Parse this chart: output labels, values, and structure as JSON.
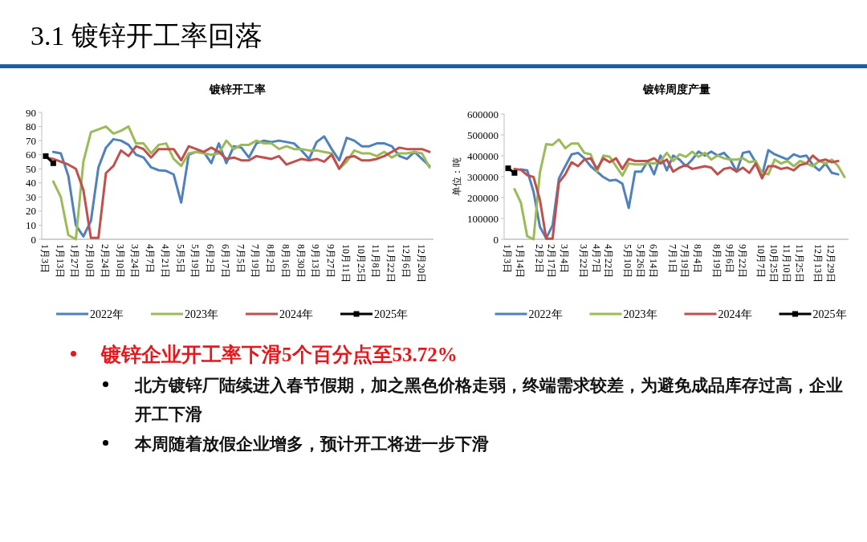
{
  "chart_data": [
    {
      "type": "line",
      "title": "镀锌开工率",
      "categories": [
        "1月3日",
        null,
        "1月13日",
        null,
        "1月27日",
        null,
        "2月10日",
        null,
        "2月24日",
        null,
        "3月10日",
        null,
        "3月24日",
        null,
        "4月7日",
        null,
        "4月21日",
        null,
        "5月5日",
        null,
        "5月19日",
        null,
        "6月2日",
        null,
        "6月17日",
        null,
        "7月5日",
        null,
        "7月19日",
        null,
        "8月2日",
        null,
        "8月16日",
        null,
        "8月30日",
        null,
        "9月13日",
        null,
        "9月27日",
        null,
        "10月11日",
        null,
        "10月25日",
        null,
        "11月8日",
        null,
        "11月22日",
        null,
        "12月6日",
        null,
        "12月20日",
        null
      ],
      "ylim": [
        0,
        90
      ],
      "yticks": [
        0,
        10,
        20,
        30,
        40,
        50,
        60,
        70,
        80,
        90
      ],
      "grid": false,
      "legend": "bottom",
      "marker": "none",
      "series": [
        {
          "name": "2022年",
          "color": "#4f81bd",
          "values": [
            null,
            62,
            61,
            45,
            10,
            2,
            13,
            51,
            65,
            71,
            70,
            67,
            60,
            58,
            51,
            49,
            48.5,
            46,
            26,
            60,
            62,
            62,
            54,
            68,
            54,
            66,
            65,
            58,
            68,
            70,
            69,
            70,
            69,
            68,
            63,
            57,
            69,
            73,
            64,
            56,
            72,
            70,
            66,
            66,
            68,
            68,
            66,
            59,
            57,
            62,
            57,
            52
          ]
        },
        {
          "name": "2023年",
          "color": "#9bbb59",
          "values": [
            null,
            41,
            30,
            3,
            0,
            55,
            76,
            78,
            80,
            75,
            77,
            80,
            68,
            68,
            61,
            67,
            68,
            57,
            52,
            61,
            62,
            61,
            60,
            61,
            70,
            64,
            67,
            67,
            70,
            68,
            68,
            64,
            66,
            64,
            64,
            63,
            63,
            62,
            61,
            50,
            55,
            63,
            61,
            61,
            59,
            62,
            58,
            61,
            61,
            62,
            61,
            51
          ]
        },
        {
          "name": "2024年",
          "color": "#c0504d",
          "values": [
            58,
            57,
            55,
            53,
            50,
            35,
            1,
            1,
            47,
            52,
            63,
            59,
            66,
            64,
            58,
            64,
            64,
            64,
            56,
            66,
            64,
            62,
            65,
            62,
            57,
            58,
            56,
            56,
            59,
            58,
            57,
            59,
            53,
            55,
            57,
            56,
            57,
            55,
            60,
            50,
            58,
            59,
            56,
            56,
            57,
            59,
            62,
            65,
            64,
            64,
            64,
            62
          ]
        },
        {
          "name": "2025年",
          "color": "#000000",
          "marker": "square",
          "values": [
            59,
            54,
            null,
            null,
            null,
            null,
            null,
            null,
            null,
            null,
            null,
            null,
            null,
            null,
            null,
            null,
            null,
            null,
            null,
            null,
            null,
            null,
            null,
            null,
            null,
            null,
            null,
            null,
            null,
            null,
            null,
            null,
            null,
            null,
            null,
            null,
            null,
            null,
            null,
            null,
            null,
            null,
            null,
            null,
            null,
            null,
            null,
            null,
            null,
            null,
            null,
            null
          ]
        }
      ]
    },
    {
      "type": "line",
      "title": "镀锌周度产量",
      "ylabel": "单位：吨",
      "categories": [
        "1月3日",
        null,
        "1月14日",
        null,
        null,
        "2月2日",
        null,
        "2月17日",
        null,
        "3月4日",
        null,
        null,
        "3月22日",
        null,
        "4月7日",
        null,
        "4月22日",
        null,
        null,
        "5月10日",
        null,
        "5月26日",
        null,
        "6月14日",
        null,
        null,
        "7月1日",
        null,
        "7月19日",
        null,
        "8月4日",
        null,
        null,
        "8月19日",
        null,
        "9月6日",
        null,
        "9月22日",
        null,
        null,
        "10月7日",
        null,
        "10月25日",
        null,
        "11月10日",
        null,
        "11月25日",
        null,
        null,
        "12月13日",
        null,
        "12月29日",
        null,
        null
      ],
      "ylim": [
        0,
        600000
      ],
      "yticks": [
        0,
        100000,
        200000,
        300000,
        400000,
        500000,
        600000
      ],
      "grid": false,
      "legend": "bottom",
      "marker": "none",
      "series": [
        {
          "name": "2022年",
          "color": "#4f81bd",
          "values": [
            null,
            null,
            335000,
            330000,
            228000,
            60000,
            5000,
            67000,
            292000,
            350000,
            407000,
            414000,
            388000,
            350000,
            324000,
            298000,
            281000,
            285000,
            266000,
            150000,
            324000,
            324000,
            375000,
            311000,
            401000,
            330000,
            401000,
            382000,
            350000,
            382000,
            420000,
            401000,
            420000,
            401000,
            414000,
            382000,
            324000,
            414000,
            420000,
            369000,
            305000,
            427000,
            407000,
            395000,
            382000,
            407000,
            395000,
            401000,
            356000,
            330000,
            363000,
            318000,
            311000,
            null
          ]
        },
        {
          "name": "2023年",
          "color": "#9bbb59",
          "values": [
            null,
            240000,
            176000,
            15000,
            0,
            320000,
            456000,
            452000,
            478000,
            436000,
            459000,
            459000,
            414000,
            407000,
            324000,
            401000,
            395000,
            350000,
            305000,
            363000,
            359000,
            359000,
            363000,
            363000,
            375000,
            414000,
            375000,
            407000,
            395000,
            420000,
            395000,
            414000,
            382000,
            401000,
            388000,
            382000,
            382000,
            388000,
            369000,
            375000,
            318000,
            311000,
            382000,
            363000,
            375000,
            350000,
            375000,
            363000,
            350000,
            375000,
            363000,
            382000,
            350000,
            298000
          ]
        },
        {
          "name": "2024年",
          "color": "#c0504d",
          "values": [
            null,
            337000,
            333000,
            307000,
            298000,
            189000,
            3000,
            3000,
            272000,
            311000,
            369000,
            350000,
            382000,
            388000,
            337000,
            388000,
            369000,
            388000,
            337000,
            385000,
            375000,
            375000,
            375000,
            388000,
            363000,
            382000,
            324000,
            343000,
            356000,
            337000,
            343000,
            350000,
            343000,
            311000,
            337000,
            343000,
            324000,
            343000,
            318000,
            363000,
            292000,
            350000,
            350000,
            337000,
            343000,
            330000,
            356000,
            363000,
            401000,
            375000,
            382000,
            369000,
            375000,
            null
          ]
        },
        {
          "name": "2025年",
          "color": "#000000",
          "marker": "square",
          "values": [
            340000,
            318000,
            null,
            null,
            null,
            null,
            null,
            null,
            null,
            null,
            null,
            null,
            null,
            null,
            null,
            null,
            null,
            null,
            null,
            null,
            null,
            null,
            null,
            null,
            null,
            null,
            null,
            null,
            null,
            null,
            null,
            null,
            null,
            null,
            null,
            null,
            null,
            null,
            null,
            null,
            null,
            null,
            null,
            null,
            null,
            null,
            null,
            null,
            null,
            null,
            null,
            null,
            null,
            null
          ]
        }
      ]
    },
    {
      "type": "other",
      "title": "3.1 镀锌开工率回落",
      "annotations": [
        "镀锌企业开工率下滑5个百分点至53.72%",
        "北方镀锌厂陆续进入春节假期，加之黑色价格走弱，终端需求较差，为避免成品库存过高，企业开工下滑",
        "本周随着放假企业增多，预计开工将进一步下滑"
      ]
    }
  ]
}
